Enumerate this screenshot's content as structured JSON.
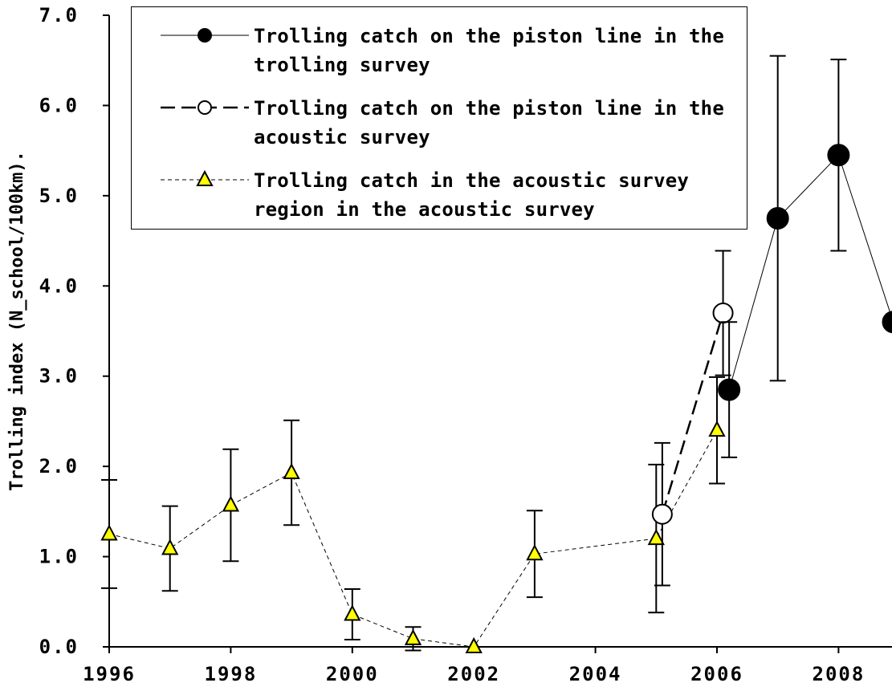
{
  "chart_data": {
    "type": "line",
    "y_label": "Trolling index (N_school/100km).",
    "xlim": [
      1996,
      2009
    ],
    "xticks": [
      1996,
      1998,
      2000,
      2002,
      2004,
      2006,
      2008
    ],
    "ylim": [
      0,
      7
    ],
    "yticks": [
      {
        "value": 0,
        "label": "0.0"
      },
      {
        "value": 1,
        "label": "1.0"
      },
      {
        "value": 2,
        "label": "2.0"
      },
      {
        "value": 3,
        "label": "3.0"
      },
      {
        "value": 4,
        "label": "4.0"
      },
      {
        "value": 5,
        "label": "5.0"
      },
      {
        "value": 6,
        "label": "6.0"
      },
      {
        "value": 7,
        "label": "7.0"
      }
    ],
    "legend": "top-left",
    "series": [
      {
        "name": "Trolling catch on the piston line in the trolling survey",
        "color": "#000000",
        "marker": "circle",
        "line_style": "solid",
        "x": [
          2006.2,
          2007,
          2008,
          2008.9
        ],
        "values": [
          2.85,
          4.75,
          5.45,
          3.6
        ],
        "errors": [
          0.75,
          1.8,
          1.06,
          null
        ]
      },
      {
        "name": "Trolling catch on the piston line in the acoustic survey",
        "color": "#ffffff",
        "marker": "circle",
        "line_style": "dashed",
        "x": [
          2005.1,
          2006.1
        ],
        "values": [
          1.47,
          3.7
        ],
        "errors": [
          0.79,
          0.69
        ]
      },
      {
        "name": "Trolling catch in the acoustic survey region in the acoustic survey",
        "color": "#ffff00",
        "marker": "triangle",
        "line_style": "dotted",
        "x": [
          1996,
          1997,
          1998,
          1999,
          2000,
          2001,
          2002,
          2003,
          2005,
          2006
        ],
        "values": [
          1.25,
          1.09,
          1.57,
          1.93,
          0.36,
          0.09,
          0.0,
          1.03,
          1.2,
          2.4
        ],
        "errors": [
          0.6,
          0.47,
          0.62,
          0.58,
          0.28,
          0.13,
          null,
          0.48,
          0.82,
          0.59
        ]
      }
    ]
  }
}
